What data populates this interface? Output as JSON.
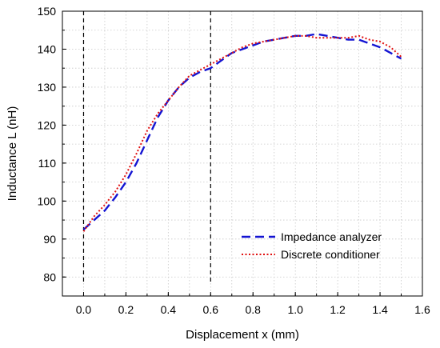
{
  "chart_data": {
    "type": "line",
    "title": "",
    "xlabel": "Displacement x (mm)",
    "ylabel": "Inductance L (nH)",
    "xlim": [
      -0.1,
      1.6
    ],
    "ylim": [
      75,
      150
    ],
    "x_ticks": [
      0.0,
      0.2,
      0.4,
      0.6,
      0.8,
      1.0,
      1.2,
      1.4,
      1.6
    ],
    "x_tick_labels": [
      "0.0",
      "0.2",
      "0.4",
      "0.6",
      "0.8",
      "1.0",
      "1.2",
      "1.4",
      "1.6"
    ],
    "y_ticks": [
      80,
      90,
      100,
      110,
      120,
      130,
      140,
      150
    ],
    "y_tick_labels": [
      "80",
      "90",
      "100",
      "110",
      "120",
      "130",
      "140",
      "150"
    ],
    "grid": true,
    "legend_position": "bottom-right",
    "reference_lines_x": [
      0.0,
      0.6
    ],
    "series": [
      {
        "name": "Impedance analyzer",
        "color": "#1414d2",
        "style": "dashed",
        "x": [
          0.0,
          0.05,
          0.1,
          0.15,
          0.2,
          0.25,
          0.3,
          0.35,
          0.4,
          0.45,
          0.5,
          0.55,
          0.6,
          0.65,
          0.7,
          0.75,
          0.8,
          0.85,
          0.9,
          0.95,
          1.0,
          1.05,
          1.1,
          1.15,
          1.2,
          1.25,
          1.3,
          1.35,
          1.4,
          1.45,
          1.5
        ],
        "y": [
          92.5,
          95.0,
          97.5,
          101.0,
          105.0,
          110.0,
          116.0,
          122.0,
          126.5,
          130.0,
          132.5,
          134.0,
          135.0,
          137.0,
          139.0,
          140.0,
          141.0,
          142.0,
          142.5,
          143.0,
          143.5,
          143.5,
          144.0,
          143.5,
          143.0,
          142.5,
          142.5,
          141.5,
          140.5,
          139.0,
          137.5
        ]
      },
      {
        "name": "Discrete conditioner",
        "color": "#e01010",
        "style": "dotted",
        "x": [
          0.0,
          0.05,
          0.1,
          0.15,
          0.2,
          0.25,
          0.3,
          0.35,
          0.4,
          0.45,
          0.5,
          0.55,
          0.6,
          0.65,
          0.7,
          0.75,
          0.8,
          0.85,
          0.9,
          0.95,
          1.0,
          1.05,
          1.1,
          1.15,
          1.2,
          1.25,
          1.3,
          1.35,
          1.4,
          1.45,
          1.5
        ],
        "y": [
          92.0,
          96.0,
          99.0,
          102.5,
          107.0,
          112.5,
          118.5,
          123.0,
          126.5,
          130.0,
          133.0,
          134.5,
          136.0,
          137.5,
          139.0,
          140.5,
          141.5,
          142.0,
          142.5,
          143.0,
          143.5,
          143.5,
          143.0,
          143.0,
          143.0,
          143.0,
          143.5,
          142.5,
          142.0,
          140.5,
          138.0
        ]
      }
    ]
  }
}
